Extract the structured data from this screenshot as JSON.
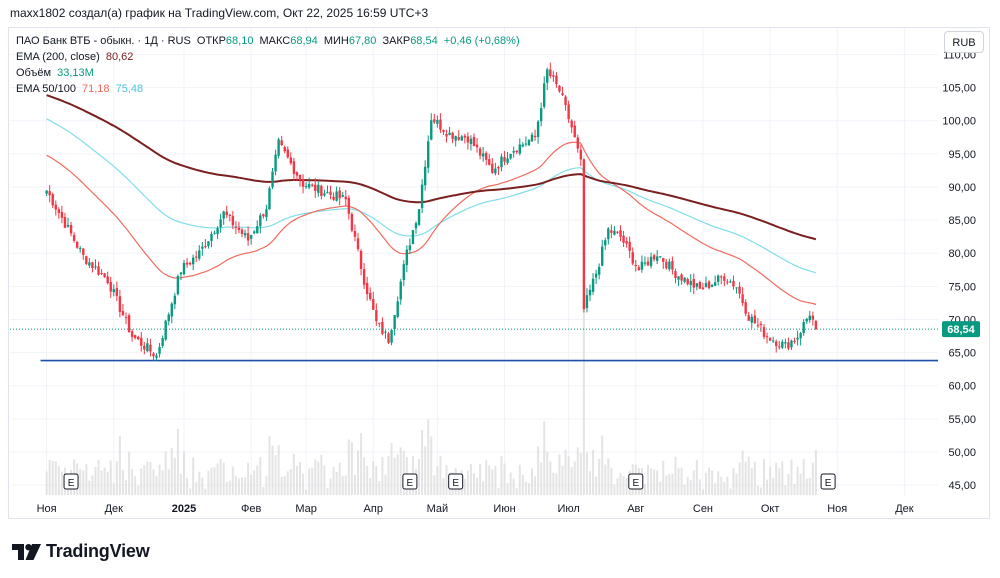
{
  "header": {
    "caption": "maxx1802 создал(а) график на TradingView.com, Окт 22, 2025 16:59 UTC+3"
  },
  "legend": {
    "symbol": "ПАО Банк ВТБ - обыкн. · 1Д · RUS",
    "open_label": "ОТКР",
    "open": "68,10",
    "high_label": "МАКС",
    "high": "68,94",
    "low_label": "МИН",
    "low": "67,80",
    "close_label": "ЗАКР",
    "close": "68,54",
    "change": "+0,46 (+0,68%)",
    "ema200_label": "EMA (200, close)",
    "ema200_value": "80,62",
    "volume_label": "Объём",
    "volume_value": "33,13M",
    "ema50_100_label": "EMA 50/100",
    "ema50_value": "71,18",
    "ema100_value": "75,48"
  },
  "currency_button": "RUB",
  "brand": {
    "name": "TradingView"
  },
  "colors": {
    "up": "#089981",
    "down": "#f23645",
    "ema200": "#7b1f1f",
    "ema50": "#ef6b5e",
    "ema100": "#80deea",
    "support_line": "#1e4fa8",
    "last_price_bg": "#089981",
    "volume": "#d9d9d9"
  },
  "chart_data": {
    "type": "candlestick",
    "y_axis": {
      "ticks": [
        "45,00",
        "50,00",
        "55,00",
        "60,00",
        "65,00",
        "70,00",
        "75,00",
        "80,00",
        "85,00",
        "90,00",
        "95,00",
        "100,00",
        "105,00",
        "110,00"
      ],
      "tick_values": [
        45,
        50,
        55,
        60,
        65,
        70,
        75,
        80,
        85,
        90,
        95,
        100,
        105,
        110
      ],
      "range": [
        43.5,
        114
      ],
      "position": "right"
    },
    "x_axis": {
      "ticks": [
        "Ноя",
        "Дек",
        "2025",
        "Фев",
        "Мар",
        "Апр",
        "Май",
        "Июн",
        "Июл",
        "Авг",
        "Сен",
        "Окт",
        "Ноя",
        "Дек"
      ],
      "tick_index": [
        0,
        22,
        45,
        67,
        85,
        107,
        128,
        150,
        171,
        193,
        215,
        237,
        259,
        281
      ],
      "range": [
        -12,
        292
      ]
    },
    "last_price": "68,54",
    "last_price_value": 68.54,
    "support_level": 63.8,
    "events": [
      {
        "label": "E",
        "index": 8
      },
      {
        "label": "E",
        "index": 119
      },
      {
        "label": "E",
        "index": 134
      },
      {
        "label": "E",
        "index": 193
      },
      {
        "label": "E",
        "index": 256
      }
    ],
    "anchors": [
      [
        0,
        89.5
      ],
      [
        12,
        79.5
      ],
      [
        20,
        76.0
      ],
      [
        28,
        67.5
      ],
      [
        36,
        64.5
      ],
      [
        44,
        77.5
      ],
      [
        50,
        80.0
      ],
      [
        58,
        86.0
      ],
      [
        66,
        82.0
      ],
      [
        72,
        87.0
      ],
      [
        76,
        96.5
      ],
      [
        84,
        90.5
      ],
      [
        98,
        88.0
      ],
      [
        104,
        76.0
      ],
      [
        108,
        69.5
      ],
      [
        112,
        67.0
      ],
      [
        118,
        80.0
      ],
      [
        122,
        87.0
      ],
      [
        126,
        100.5
      ],
      [
        132,
        98.0
      ],
      [
        138,
        97.5
      ],
      [
        146,
        92.5
      ],
      [
        152,
        95.5
      ],
      [
        160,
        97.5
      ],
      [
        164,
        107.5
      ],
      [
        168,
        104.5
      ],
      [
        172,
        99.0
      ],
      [
        175,
        93.5
      ],
      [
        176,
        71.5
      ],
      [
        180,
        77.0
      ],
      [
        184,
        83.5
      ],
      [
        188,
        82.5
      ],
      [
        194,
        77.5
      ],
      [
        200,
        80.0
      ],
      [
        206,
        77.0
      ],
      [
        214,
        74.5
      ],
      [
        222,
        76.5
      ],
      [
        226,
        75.0
      ],
      [
        230,
        70.5
      ],
      [
        236,
        67.5
      ],
      [
        242,
        66.0
      ],
      [
        246,
        67.5
      ],
      [
        250,
        71.0
      ],
      [
        252,
        68.54
      ]
    ]
  }
}
